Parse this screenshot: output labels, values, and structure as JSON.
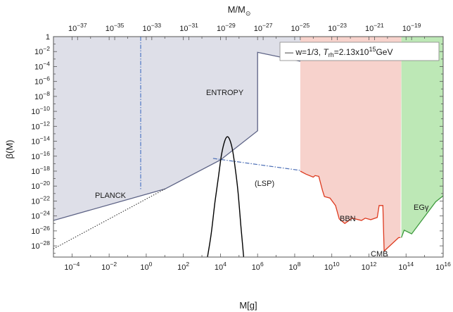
{
  "chart_data": {
    "type": "area",
    "xlabel": "M[g]",
    "x2label": "M/M",
    "x2label_sub": "⊙",
    "ylabel": "β(M)",
    "x_scale": "log",
    "y_scale": "log",
    "xlim_log10": [
      -5,
      16
    ],
    "ylim_log10": [
      -29.5,
      0
    ],
    "x_ticks": [
      {
        "b": "10",
        "e": "−4",
        "v": -4
      },
      {
        "b": "10",
        "e": "−2",
        "v": -2
      },
      {
        "b": "10",
        "e": "0",
        "v": 0
      },
      {
        "b": "10",
        "e": "2",
        "v": 2
      },
      {
        "b": "10",
        "e": "4",
        "v": 4
      },
      {
        "b": "10",
        "e": "6",
        "v": 6
      },
      {
        "b": "10",
        "e": "8",
        "v": 8
      },
      {
        "b": "10",
        "e": "10",
        "v": 10
      },
      {
        "b": "10",
        "e": "12",
        "v": 12
      },
      {
        "b": "10",
        "e": "14",
        "v": 14
      },
      {
        "b": "10",
        "e": "16",
        "v": 16
      }
    ],
    "x2_ticks": [
      {
        "b": "10",
        "e": "−37",
        "v": -37
      },
      {
        "b": "10",
        "e": "−35",
        "v": -35
      },
      {
        "b": "10",
        "e": "−33",
        "v": -33
      },
      {
        "b": "10",
        "e": "−31",
        "v": -31
      },
      {
        "b": "10",
        "e": "−29",
        "v": -29
      },
      {
        "b": "10",
        "e": "−27",
        "v": -27
      },
      {
        "b": "10",
        "e": "−25",
        "v": -25
      },
      {
        "b": "10",
        "e": "−23",
        "v": -23
      },
      {
        "b": "10",
        "e": "−21",
        "v": -21
      },
      {
        "b": "10",
        "e": "−19",
        "v": -19
      }
    ],
    "x2_offset_log10": 33.3,
    "y_ticks": [
      {
        "b": "1",
        "e": "",
        "v": 0
      },
      {
        "b": "10",
        "e": "−2",
        "v": -2
      },
      {
        "b": "10",
        "e": "−4",
        "v": -4
      },
      {
        "b": "10",
        "e": "−6",
        "v": -6
      },
      {
        "b": "10",
        "e": "−8",
        "v": -8
      },
      {
        "b": "10",
        "e": "−10",
        "v": -10
      },
      {
        "b": "10",
        "e": "−12",
        "v": -12
      },
      {
        "b": "10",
        "e": "−14",
        "v": -14
      },
      {
        "b": "10",
        "e": "−16",
        "v": -16
      },
      {
        "b": "10",
        "e": "−18",
        "v": -18
      },
      {
        "b": "10",
        "e": "−20",
        "v": -20
      },
      {
        "b": "10",
        "e": "−22",
        "v": -22
      },
      {
        "b": "10",
        "e": "−24",
        "v": -24
      },
      {
        "b": "10",
        "e": "−26",
        "v": -26
      },
      {
        "b": "10",
        "e": "−28",
        "v": -28
      }
    ],
    "legend": {
      "placement": "top-right",
      "symbol": "—",
      "w_text": "w=1/3, ",
      "T_main": "T",
      "T_sub": "rh",
      "T_value": "=2.13x10",
      "T_exp": "15",
      "T_unit": "GeV"
    },
    "colors": {
      "gray_region": "#dedfe8",
      "gray_border": "#5c6285",
      "planck_line": "#5a7fc8",
      "lsp_line": "#4a6db5",
      "bbn_fill": "#f7d2cc",
      "bbn_line": "#dd3a1f",
      "eg_fill": "#bde8b6",
      "eg_line": "#3e9a3e",
      "curve": "#000000"
    },
    "regions": [
      {
        "name": "ENTROPY",
        "type": "area",
        "boundary": [
          [
            -5,
            -24.6
          ],
          [
            1,
            -20.4
          ],
          [
            4,
            -16.5
          ],
          [
            6,
            -12.6
          ],
          [
            6,
            -2.1
          ],
          [
            8.3,
            -3.3
          ],
          [
            8.3,
            0
          ]
        ]
      },
      {
        "name": "BBN",
        "type": "area",
        "boundary": [
          [
            8.3,
            -18
          ],
          [
            8.6,
            -18.4
          ],
          [
            9,
            -18.8
          ],
          [
            9.1,
            -18.6
          ],
          [
            9.3,
            -18.7
          ],
          [
            9.5,
            -20.6
          ],
          [
            9.6,
            -21.4
          ],
          [
            9.9,
            -21.6
          ],
          [
            10.2,
            -22.6
          ],
          [
            10.4,
            -24.4
          ],
          [
            10.7,
            -25
          ],
          [
            11.1,
            -24.3
          ],
          [
            11.6,
            -24.6
          ],
          [
            11.8,
            -24.3
          ],
          [
            12.1,
            -24.5
          ],
          [
            12.45,
            -24.2
          ],
          [
            12.55,
            -22.6
          ],
          [
            12.75,
            -22.6
          ],
          [
            12.82,
            -28.7
          ],
          [
            13.6,
            -26.9
          ],
          [
            13.7,
            -26.9
          ],
          [
            13.75,
            0
          ]
        ]
      },
      {
        "name": "EGγ",
        "type": "area",
        "boundary": [
          [
            13.75,
            -26.9
          ],
          [
            13.9,
            -25.9
          ],
          [
            14.3,
            -26.4
          ],
          [
            15.6,
            -22.1
          ],
          [
            16,
            -21.3
          ],
          [
            16,
            0
          ]
        ]
      },
      {
        "name": "CMB",
        "type": "label"
      },
      {
        "name": "PLANCK",
        "type": "line",
        "x": -0.3,
        "points": [
          [
            -0.3,
            0
          ],
          [
            -0.3,
            -20.5
          ]
        ]
      },
      {
        "name": "(LSP)",
        "type": "line",
        "points": [
          [
            3.6,
            -16.3
          ],
          [
            8.3,
            -17.9
          ]
        ]
      }
    ],
    "series": [
      {
        "type": "dotted-line",
        "points": [
          [
            -5,
            -28.4
          ],
          [
            1,
            -20.4
          ]
        ]
      },
      {
        "type": "line",
        "peak": [
          4.35,
          -13.4
        ],
        "points": [
          [
            3.3,
            -29.5
          ],
          [
            3.5,
            -26.4
          ],
          [
            3.7,
            -22.2
          ],
          [
            3.9,
            -18.6
          ],
          [
            4.05,
            -15.9
          ],
          [
            4.2,
            -14.2
          ],
          [
            4.35,
            -13.4
          ],
          [
            4.5,
            -13.8
          ],
          [
            4.65,
            -15.2
          ],
          [
            4.8,
            -17.7
          ],
          [
            4.95,
            -20.9
          ],
          [
            5.1,
            -25.3
          ],
          [
            5.25,
            -29.5
          ]
        ]
      }
    ]
  }
}
